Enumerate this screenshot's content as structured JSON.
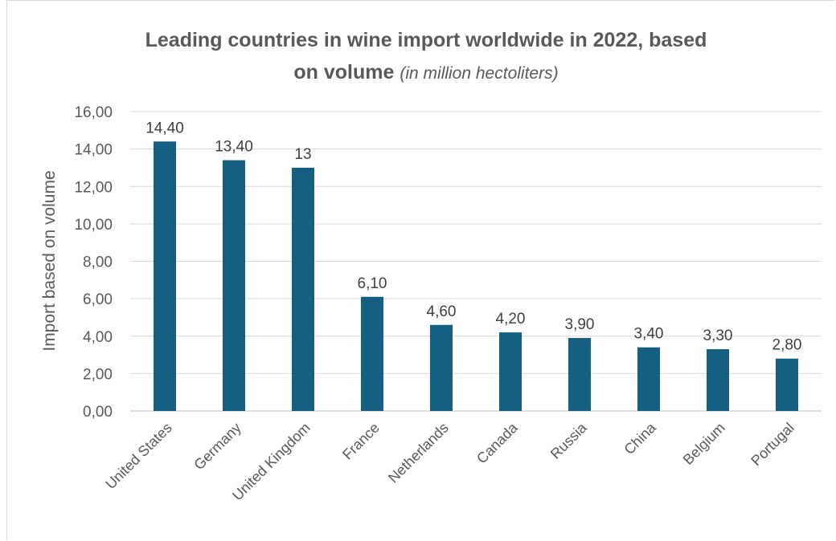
{
  "chart_data": {
    "type": "bar",
    "title_main": "Leading countries in wine import worldwide in 2022,  based",
    "title_line2": "on volume",
    "title_unit": "(in million hectoliters)",
    "xlabel": "",
    "ylabel": "Import based on volume",
    "ylim": [
      0,
      16
    ],
    "ytick_step": 2,
    "ytick_labels": [
      "0,00",
      "2,00",
      "4,00",
      "6,00",
      "8,00",
      "10,00",
      "12,00",
      "14,00",
      "16,00"
    ],
    "grid": true,
    "bar_color": "#156082",
    "categories": [
      "United States",
      "Germany",
      "United Kingdom",
      "France",
      "Netherlands",
      "Canada",
      "Russia",
      "China",
      "Belgium",
      "Portugal"
    ],
    "values": [
      14.4,
      13.4,
      13.0,
      6.1,
      4.6,
      4.2,
      3.9,
      3.4,
      3.3,
      2.8
    ],
    "data_labels": [
      "14,40",
      "13,40",
      "13",
      "6,10",
      "4,60",
      "4,20",
      "3,90",
      "3,40",
      "3,30",
      "2,80"
    ]
  }
}
